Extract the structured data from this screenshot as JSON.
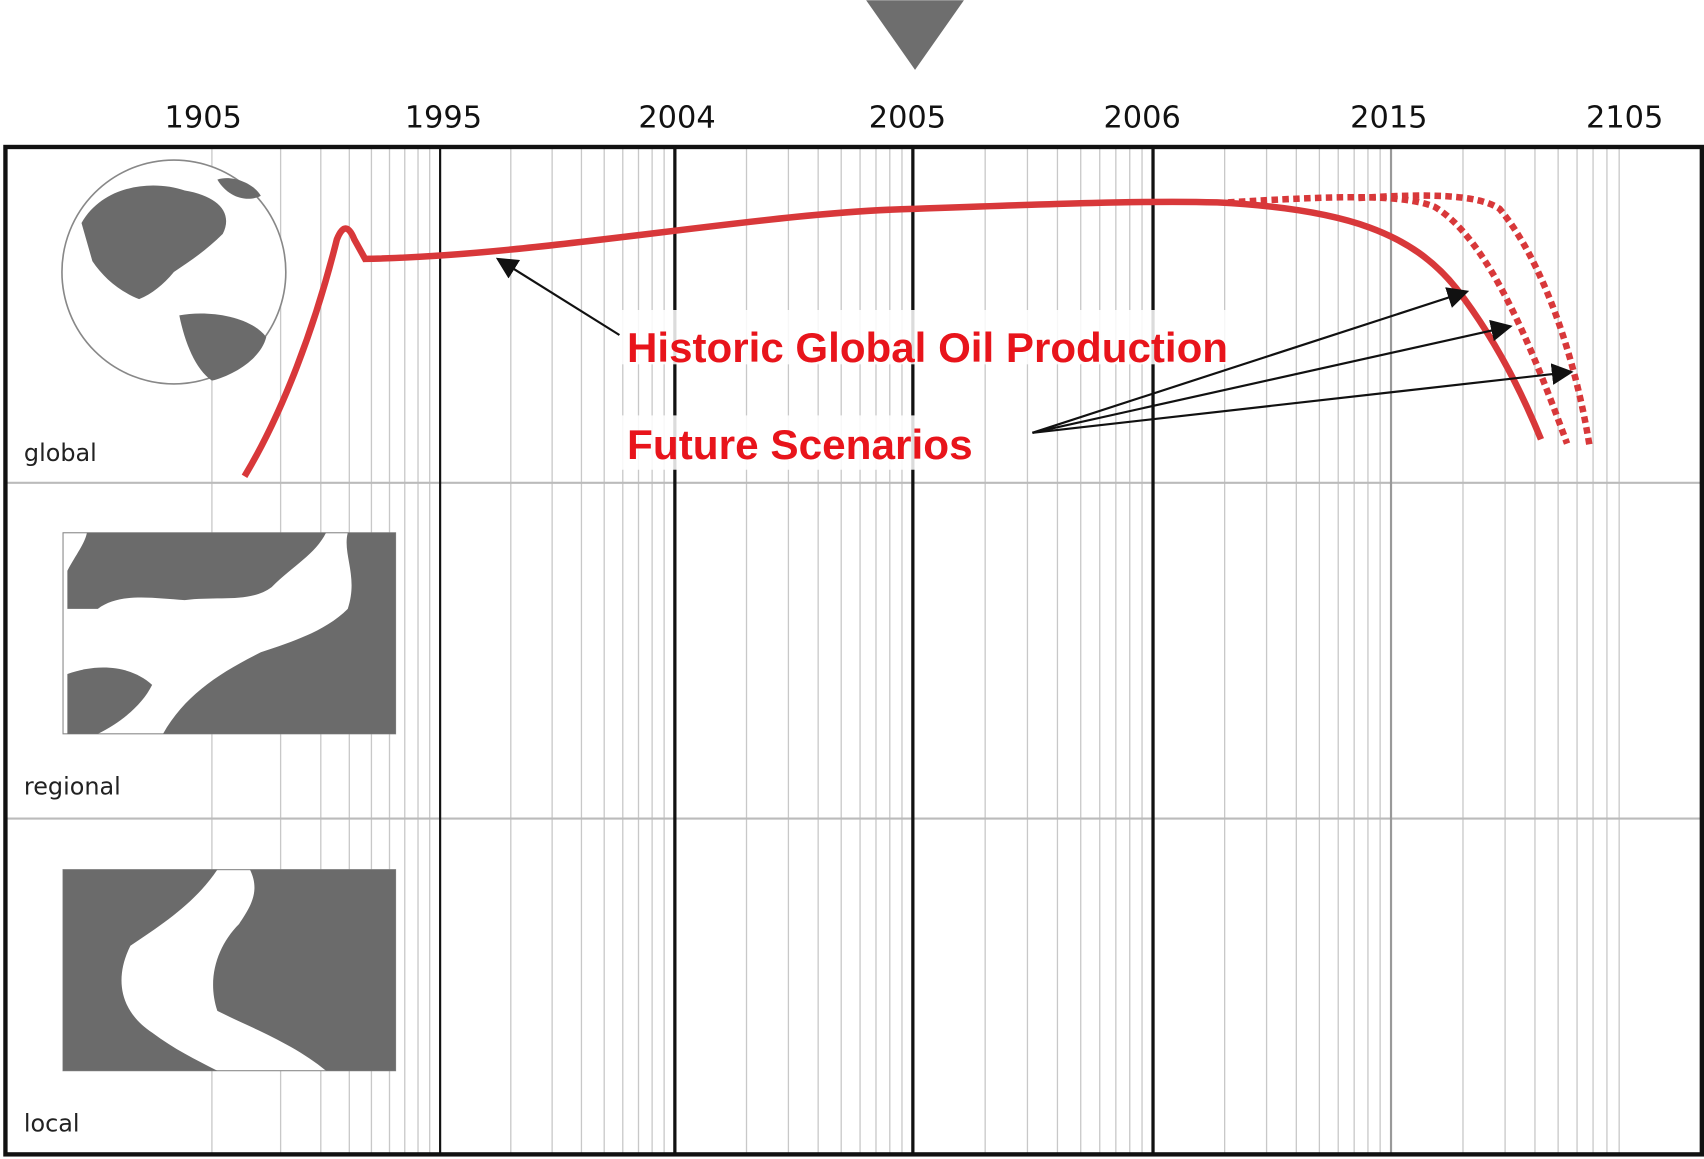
{
  "timeline": {
    "years": [
      "1905",
      "1995",
      "2004",
      "2005",
      "2006",
      "2015",
      "2105"
    ]
  },
  "rows": [
    "global",
    "regional",
    "local"
  ],
  "annotations": {
    "historic": "Historic Global Oil Production",
    "future": "Future Scenarios"
  }
}
